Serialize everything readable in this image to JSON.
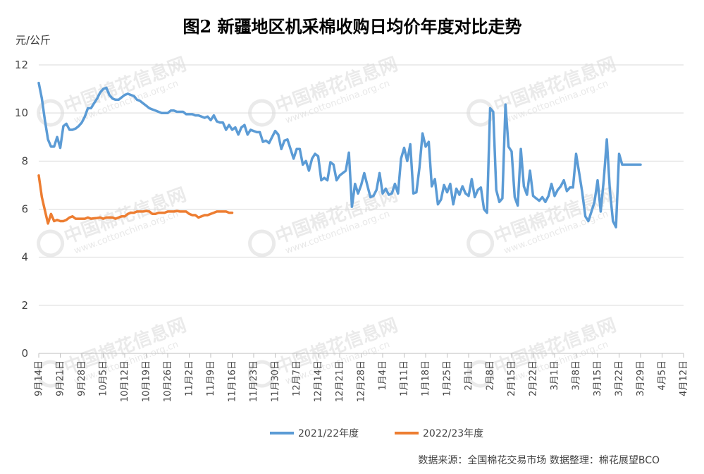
{
  "page_title": "图2  新疆地区机采棉收购日均价年度对比走势",
  "y_unit": "元/公斤",
  "source_note": "数据来源：全国棉花交易市场   数据整理：棉花展望BCO",
  "watermark": {
    "text": "中国棉花信息网",
    "url": "www.cottonchina.org.cn"
  },
  "chart_data": {
    "type": "line",
    "title": "图2  新疆地区机采棉收购日均价年度对比走势",
    "ylabel": "元/公斤",
    "ylim": [
      0,
      12
    ],
    "yticks": [
      "0",
      "2",
      "4",
      "6",
      "8",
      "10",
      "12"
    ],
    "grid": true,
    "legend_position": "bottom",
    "categories": [
      "9月14日",
      "9月21日",
      "9月28日",
      "10月5日",
      "10月12日",
      "10月19日",
      "10月26日",
      "11月2日",
      "11月9日",
      "11月16日",
      "11月23日",
      "11月30日",
      "12月7日",
      "12月14日",
      "12月21日",
      "12月28日",
      "1月4日",
      "1月11日",
      "1月18日",
      "1月25日",
      "2月1日",
      "2月8日",
      "2月15日",
      "2月22日",
      "3月1日",
      "3月8日",
      "3月15日",
      "3月22日",
      "3月29日",
      "4月5日",
      "4月12日"
    ],
    "series": [
      {
        "name": "2021/22年度",
        "color": "#5b9bd5",
        "points": [
          [
            0,
            11.25
          ],
          [
            1,
            10.6
          ],
          [
            2,
            9.7
          ],
          [
            3,
            8.9
          ],
          [
            4,
            8.6
          ],
          [
            5,
            8.6
          ],
          [
            6,
            9.0
          ],
          [
            7,
            8.55
          ],
          [
            8,
            9.45
          ],
          [
            9,
            9.55
          ],
          [
            10,
            9.3
          ],
          [
            11,
            9.3
          ],
          [
            12,
            9.35
          ],
          [
            13,
            9.45
          ],
          [
            14,
            9.6
          ],
          [
            15,
            9.85
          ],
          [
            16,
            10.2
          ],
          [
            17,
            10.2
          ],
          [
            18,
            10.4
          ],
          [
            19,
            10.6
          ],
          [
            20,
            10.85
          ],
          [
            21,
            11.0
          ],
          [
            22,
            11.05
          ],
          [
            23,
            10.75
          ],
          [
            24,
            10.6
          ],
          [
            25,
            10.55
          ],
          [
            26,
            10.55
          ],
          [
            27,
            10.65
          ],
          [
            28,
            10.75
          ],
          [
            29,
            10.8
          ],
          [
            30,
            10.75
          ],
          [
            31,
            10.7
          ],
          [
            32,
            10.55
          ],
          [
            33,
            10.5
          ],
          [
            34,
            10.4
          ],
          [
            35,
            10.3
          ],
          [
            36,
            10.2
          ],
          [
            37,
            10.15
          ],
          [
            38,
            10.1
          ],
          [
            39,
            10.05
          ],
          [
            40,
            10.0
          ],
          [
            41,
            10.0
          ],
          [
            42,
            10.0
          ],
          [
            43,
            10.1
          ],
          [
            44,
            10.1
          ],
          [
            45,
            10.05
          ],
          [
            46,
            10.05
          ],
          [
            47,
            10.05
          ],
          [
            48,
            9.95
          ],
          [
            49,
            9.95
          ],
          [
            50,
            9.95
          ],
          [
            51,
            9.9
          ],
          [
            52,
            9.9
          ],
          [
            53,
            9.85
          ],
          [
            54,
            9.8
          ],
          [
            55,
            9.85
          ],
          [
            56,
            9.7
          ],
          [
            57,
            9.9
          ],
          [
            58,
            9.65
          ],
          [
            59,
            9.6
          ],
          [
            60,
            9.6
          ],
          [
            61,
            9.3
          ],
          [
            62,
            9.5
          ],
          [
            63,
            9.3
          ],
          [
            64,
            9.4
          ],
          [
            65,
            9.1
          ],
          [
            66,
            9.4
          ],
          [
            67,
            9.5
          ],
          [
            68,
            9.1
          ],
          [
            69,
            9.3
          ],
          [
            70,
            9.25
          ],
          [
            71,
            9.2
          ],
          [
            72,
            9.2
          ],
          [
            73,
            8.8
          ],
          [
            74,
            8.85
          ],
          [
            75,
            8.75
          ],
          [
            76,
            9.0
          ],
          [
            77,
            9.25
          ],
          [
            78,
            9.1
          ],
          [
            79,
            8.5
          ],
          [
            80,
            8.85
          ],
          [
            81,
            8.9
          ],
          [
            82,
            8.5
          ],
          [
            83,
            8.1
          ],
          [
            84,
            8.5
          ],
          [
            85,
            8.5
          ],
          [
            86,
            7.85
          ],
          [
            87,
            8.0
          ],
          [
            88,
            7.6
          ],
          [
            89,
            8.1
          ],
          [
            90,
            8.3
          ],
          [
            91,
            8.2
          ],
          [
            92,
            7.2
          ],
          [
            93,
            7.3
          ],
          [
            94,
            7.2
          ],
          [
            95,
            7.95
          ],
          [
            96,
            7.85
          ],
          [
            97,
            7.2
          ],
          [
            98,
            7.4
          ],
          [
            99,
            7.5
          ],
          [
            100,
            7.6
          ],
          [
            101,
            8.35
          ],
          [
            102,
            6.1
          ],
          [
            103,
            7.05
          ],
          [
            104,
            6.65
          ],
          [
            105,
            7.0
          ],
          [
            106,
            7.5
          ],
          [
            107,
            7.0
          ],
          [
            108,
            6.5
          ],
          [
            109,
            6.55
          ],
          [
            110,
            6.8
          ],
          [
            111,
            7.5
          ],
          [
            112,
            6.65
          ],
          [
            113,
            6.85
          ],
          [
            114,
            6.6
          ],
          [
            115,
            6.65
          ],
          [
            116,
            7.05
          ],
          [
            117,
            6.65
          ],
          [
            118,
            8.1
          ],
          [
            119,
            8.55
          ],
          [
            120,
            8.0
          ],
          [
            121,
            8.7
          ],
          [
            122,
            6.65
          ],
          [
            123,
            6.7
          ],
          [
            124,
            7.75
          ],
          [
            125,
            9.15
          ],
          [
            126,
            8.6
          ],
          [
            127,
            8.8
          ],
          [
            128,
            6.95
          ],
          [
            129,
            7.25
          ],
          [
            130,
            6.2
          ],
          [
            131,
            6.4
          ],
          [
            132,
            7.0
          ],
          [
            133,
            6.7
          ],
          [
            134,
            7.05
          ],
          [
            135,
            6.2
          ],
          [
            136,
            6.85
          ],
          [
            137,
            6.6
          ],
          [
            138,
            6.95
          ],
          [
            139,
            6.65
          ],
          [
            140,
            6.55
          ],
          [
            141,
            7.25
          ],
          [
            142,
            6.5
          ],
          [
            143,
            6.8
          ],
          [
            144,
            6.9
          ],
          [
            145,
            6.0
          ],
          [
            146,
            5.85
          ],
          [
            147,
            10.2
          ],
          [
            148,
            10.05
          ],
          [
            149,
            6.8
          ],
          [
            150,
            6.3
          ],
          [
            151,
            6.45
          ],
          [
            152,
            10.35
          ],
          [
            153,
            8.6
          ],
          [
            154,
            8.4
          ],
          [
            155,
            6.5
          ],
          [
            156,
            6.15
          ],
          [
            157,
            8.5
          ],
          [
            158,
            6.95
          ],
          [
            159,
            6.6
          ],
          [
            160,
            7.6
          ],
          [
            161,
            6.55
          ],
          [
            162,
            6.45
          ],
          [
            163,
            6.35
          ],
          [
            164,
            6.5
          ],
          [
            165,
            6.3
          ],
          [
            166,
            6.55
          ],
          [
            167,
            7.05
          ],
          [
            168,
            6.55
          ],
          [
            169,
            6.8
          ],
          [
            170,
            6.95
          ],
          [
            171,
            7.2
          ],
          [
            172,
            6.75
          ],
          [
            173,
            6.9
          ],
          [
            174,
            6.9
          ],
          [
            175,
            8.3
          ],
          [
            176,
            7.5
          ],
          [
            177,
            6.7
          ],
          [
            178,
            5.7
          ],
          [
            179,
            5.5
          ],
          [
            180,
            5.9
          ],
          [
            181,
            6.3
          ],
          [
            182,
            7.2
          ],
          [
            183,
            5.9
          ],
          [
            184,
            7.2
          ],
          [
            185,
            8.9
          ],
          [
            186,
            6.8
          ],
          [
            187,
            5.5
          ],
          [
            188,
            5.25
          ],
          [
            189,
            8.3
          ],
          [
            190,
            7.85
          ],
          [
            191,
            7.85
          ],
          [
            192,
            7.85
          ],
          [
            193,
            7.85
          ],
          [
            194,
            7.85
          ],
          [
            195,
            7.85
          ],
          [
            196,
            7.85
          ]
        ]
      },
      {
        "name": "2022/23年度",
        "color": "#ed7d31",
        "points": [
          [
            0,
            7.4
          ],
          [
            1,
            6.5
          ],
          [
            2,
            5.95
          ],
          [
            3,
            5.4
          ],
          [
            4,
            5.8
          ],
          [
            5,
            5.5
          ],
          [
            6,
            5.55
          ],
          [
            7,
            5.5
          ],
          [
            8,
            5.5
          ],
          [
            9,
            5.55
          ],
          [
            10,
            5.65
          ],
          [
            11,
            5.7
          ],
          [
            12,
            5.6
          ],
          [
            13,
            5.6
          ],
          [
            14,
            5.6
          ],
          [
            15,
            5.6
          ],
          [
            16,
            5.65
          ],
          [
            17,
            5.6
          ],
          [
            18,
            5.62
          ],
          [
            19,
            5.63
          ],
          [
            20,
            5.65
          ],
          [
            21,
            5.6
          ],
          [
            22,
            5.65
          ],
          [
            23,
            5.65
          ],
          [
            24,
            5.65
          ],
          [
            25,
            5.6
          ],
          [
            26,
            5.65
          ],
          [
            27,
            5.7
          ],
          [
            28,
            5.7
          ],
          [
            29,
            5.8
          ],
          [
            30,
            5.85
          ],
          [
            31,
            5.85
          ],
          [
            32,
            5.9
          ],
          [
            33,
            5.9
          ],
          [
            34,
            5.9
          ],
          [
            35,
            5.92
          ],
          [
            36,
            5.9
          ],
          [
            37,
            5.8
          ],
          [
            38,
            5.8
          ],
          [
            39,
            5.85
          ],
          [
            40,
            5.85
          ],
          [
            41,
            5.85
          ],
          [
            42,
            5.9
          ],
          [
            43,
            5.9
          ],
          [
            44,
            5.9
          ],
          [
            45,
            5.92
          ],
          [
            46,
            5.9
          ],
          [
            47,
            5.9
          ],
          [
            48,
            5.9
          ],
          [
            49,
            5.8
          ],
          [
            50,
            5.75
          ],
          [
            51,
            5.75
          ],
          [
            52,
            5.65
          ],
          [
            53,
            5.7
          ],
          [
            54,
            5.75
          ],
          [
            55,
            5.75
          ],
          [
            56,
            5.8
          ],
          [
            57,
            5.85
          ],
          [
            58,
            5.9
          ],
          [
            59,
            5.9
          ],
          [
            60,
            5.9
          ],
          [
            61,
            5.9
          ],
          [
            62,
            5.85
          ],
          [
            63,
            5.85
          ]
        ]
      }
    ]
  }
}
